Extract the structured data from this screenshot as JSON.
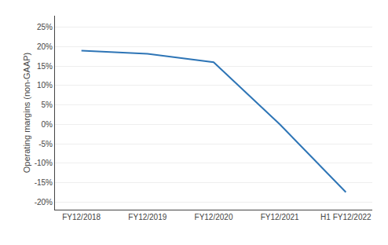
{
  "chart_data": {
    "type": "line",
    "ylabel": "Operating margins (non-GAAP)",
    "categories": [
      "FY12/2018",
      "FY12/2019",
      "FY12/2020",
      "FY12/2021",
      "H1 FY12/2022"
    ],
    "values": [
      19.0,
      18.2,
      16.0,
      0.0,
      -17.5
    ],
    "color": "#2E75B6",
    "ylim": [
      -22,
      28
    ],
    "yticks": [
      {
        "value": -20,
        "label": "-20%"
      },
      {
        "value": -15,
        "label": "-15%"
      },
      {
        "value": -10,
        "label": "-10%"
      },
      {
        "value": -5,
        "label": "-5%"
      },
      {
        "value": 0,
        "label": "0%"
      },
      {
        "value": 5,
        "label": "5%"
      },
      {
        "value": 10,
        "label": "10%"
      },
      {
        "value": 15,
        "label": "15%"
      },
      {
        "value": 20,
        "label": "20%"
      },
      {
        "value": 25,
        "label": "25%"
      }
    ],
    "grid": true
  }
}
